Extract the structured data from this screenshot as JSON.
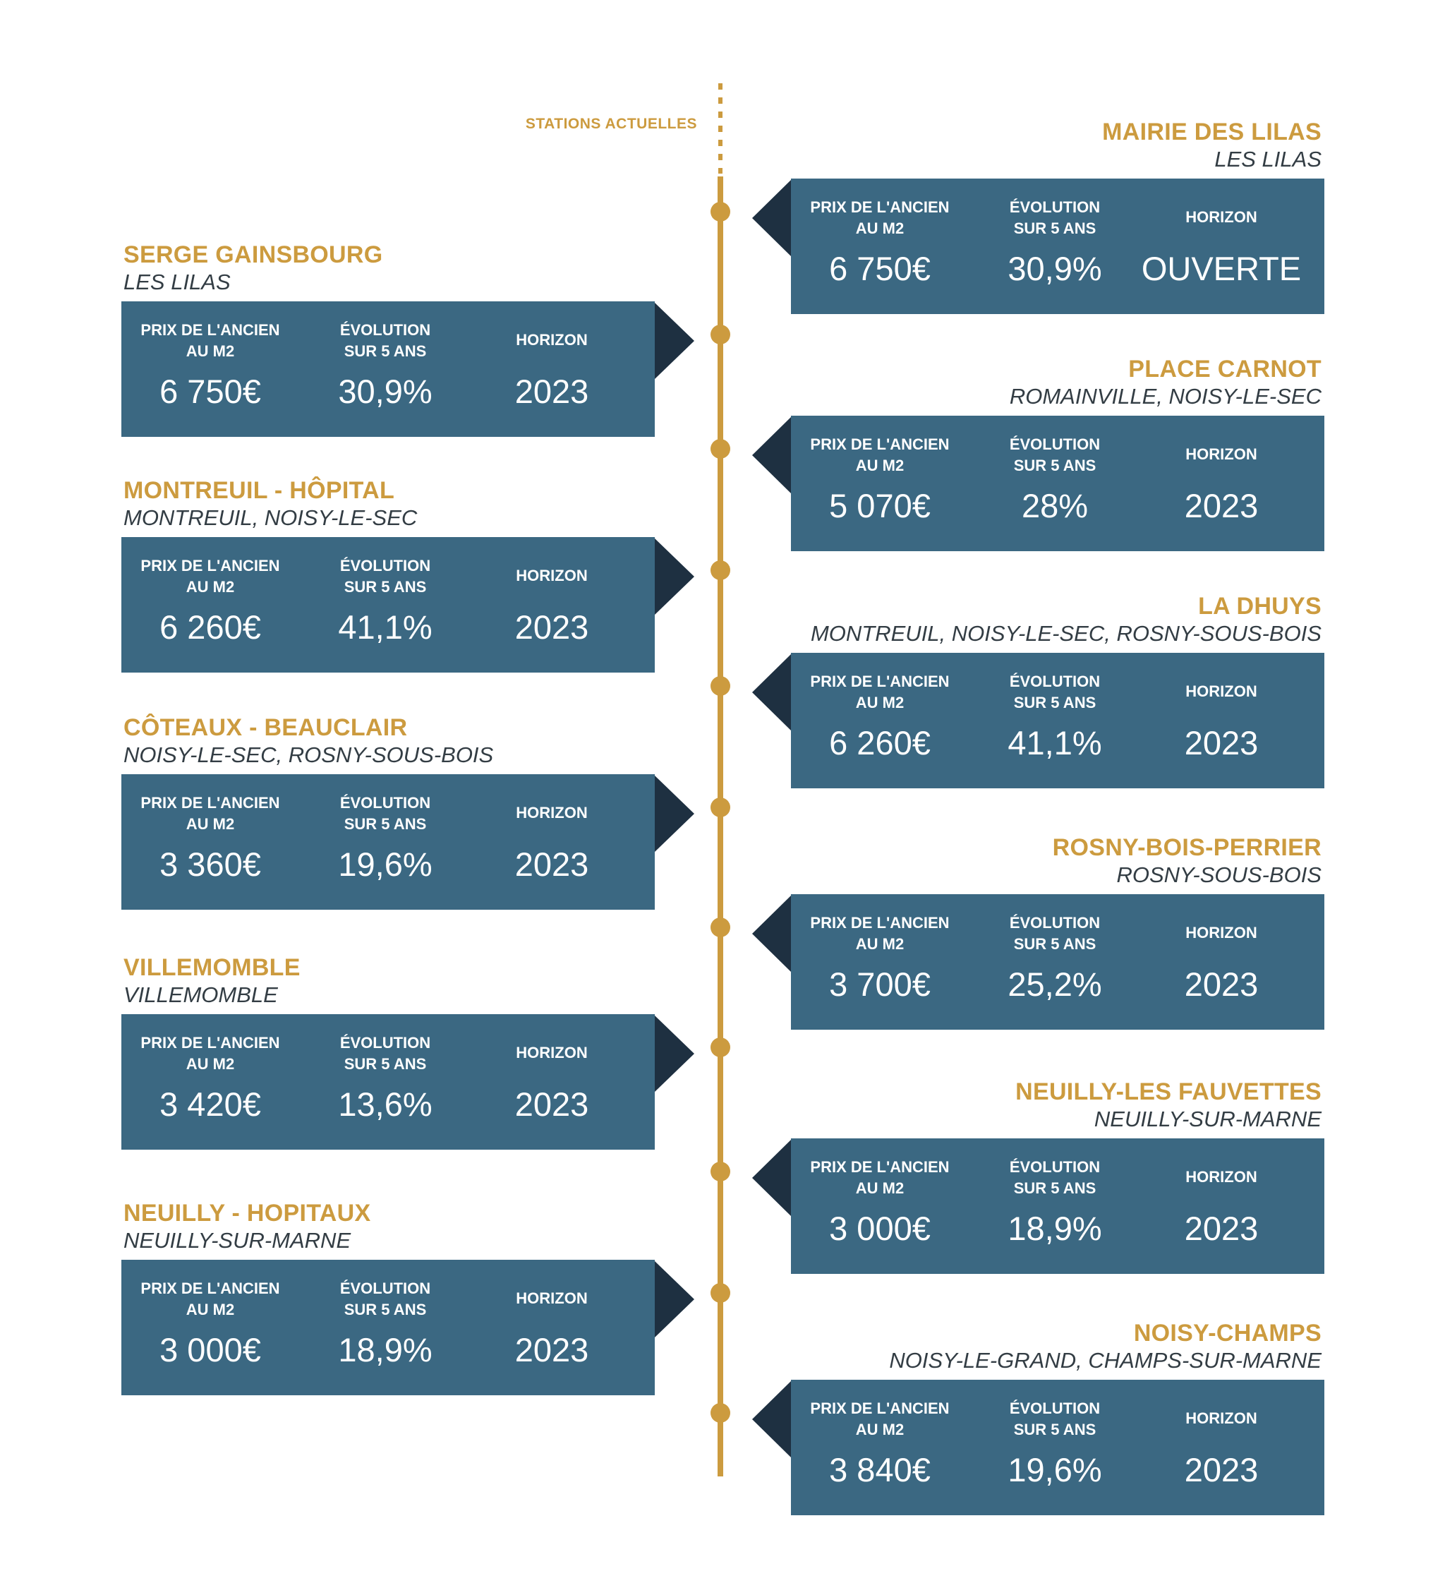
{
  "header_label": "STATIONS ACTUELLES",
  "colors": {
    "accent": "#cc9b3f",
    "box": "#3b6882",
    "arrow": "#1e3041",
    "subtitle": "#333d44"
  },
  "stations": [
    {
      "name": "MAIRIE DES LILAS",
      "city": "LES LILAS",
      "side": "right",
      "price_label_1": "PRIX DE L'ANCIEN",
      "price_label_2": "AU M2",
      "price": "6 750€",
      "evol_label_1": "ÉVOLUTION",
      "evol_label_2": "SUR 5 ANS",
      "evolution": "30,9%",
      "horizon_label": "HORIZON",
      "horizon": "OUVERTE"
    },
    {
      "name": "SERGE GAINSBOURG",
      "city": "LES LILAS",
      "side": "left",
      "price_label_1": "PRIX DE L'ANCIEN",
      "price_label_2": "AU M2",
      "price": "6 750€",
      "evol_label_1": "ÉVOLUTION",
      "evol_label_2": "SUR 5 ANS",
      "evolution": "30,9%",
      "horizon_label": "HORIZON",
      "horizon": "2023"
    },
    {
      "name": "PLACE CARNOT",
      "city": "ROMAINVILLE, NOISY-LE-SEC",
      "side": "right",
      "price_label_1": "PRIX DE L'ANCIEN",
      "price_label_2": "AU M2",
      "price": "5 070€",
      "evol_label_1": "ÉVOLUTION",
      "evol_label_2": "SUR 5 ANS",
      "evolution": "28%",
      "horizon_label": "HORIZON",
      "horizon": "2023"
    },
    {
      "name": "MONTREUIL - HÔPITAL",
      "city": "MONTREUIL, NOISY-LE-SEC",
      "side": "left",
      "price_label_1": "PRIX DE L'ANCIEN",
      "price_label_2": "AU M2",
      "price": "6 260€",
      "evol_label_1": "ÉVOLUTION",
      "evol_label_2": "SUR 5 ANS",
      "evolution": "41,1%",
      "horizon_label": "HORIZON",
      "horizon": "2023"
    },
    {
      "name": "LA DHUYS",
      "city": "MONTREUIL, NOISY-LE-SEC, ROSNY-SOUS-BOIS",
      "side": "right",
      "price_label_1": "PRIX DE L'ANCIEN",
      "price_label_2": "AU M2",
      "price": "6 260€",
      "evol_label_1": "ÉVOLUTION",
      "evol_label_2": "SUR 5 ANS",
      "evolution": "41,1%",
      "horizon_label": "HORIZON",
      "horizon": "2023"
    },
    {
      "name": "CÔTEAUX - BEAUCLAIR",
      "city": "NOISY-LE-SEC, ROSNY-SOUS-BOIS",
      "side": "left",
      "price_label_1": "PRIX DE L'ANCIEN",
      "price_label_2": "AU M2",
      "price": "3 360€",
      "evol_label_1": "ÉVOLUTION",
      "evol_label_2": "SUR 5 ANS",
      "evolution": "19,6%",
      "horizon_label": "HORIZON",
      "horizon": "2023"
    },
    {
      "name": "ROSNY-BOIS-PERRIER",
      "city": "ROSNY-SOUS-BOIS",
      "side": "right",
      "price_label_1": "PRIX DE L'ANCIEN",
      "price_label_2": "AU M2",
      "price": "3 700€",
      "evol_label_1": "ÉVOLUTION",
      "evol_label_2": "SUR 5 ANS",
      "evolution": "25,2%",
      "horizon_label": "HORIZON",
      "horizon": "2023"
    },
    {
      "name": "VILLEMOMBLE",
      "city": "VILLEMOMBLE",
      "side": "left",
      "price_label_1": "PRIX DE L'ANCIEN",
      "price_label_2": "AU M2",
      "price": "3 420€",
      "evol_label_1": "ÉVOLUTION",
      "evol_label_2": "SUR 5 ANS",
      "evolution": "13,6%",
      "horizon_label": "HORIZON",
      "horizon": "2023"
    },
    {
      "name": "NEUILLY-LES FAUVETTES",
      "city": "NEUILLY-SUR-MARNE",
      "side": "right",
      "price_label_1": "PRIX DE L'ANCIEN",
      "price_label_2": "AU M2",
      "price": "3 000€",
      "evol_label_1": "ÉVOLUTION",
      "evol_label_2": "SUR 5 ANS",
      "evolution": "18,9%",
      "horizon_label": "HORIZON",
      "horizon": "2023"
    },
    {
      "name": "NEUILLY - HOPITAUX",
      "city": "NEUILLY-SUR-MARNE",
      "side": "left",
      "price_label_1": "PRIX DE L'ANCIEN",
      "price_label_2": "AU M2",
      "price": "3 000€",
      "evol_label_1": "ÉVOLUTION",
      "evol_label_2": "SUR 5 ANS",
      "evolution": "18,9%",
      "horizon_label": "HORIZON",
      "horizon": "2023"
    },
    {
      "name": "NOISY-CHAMPS",
      "city": "NOISY-LE-GRAND, CHAMPS-SUR-MARNE",
      "side": "right",
      "price_label_1": "PRIX DE L'ANCIEN",
      "price_label_2": "AU M2",
      "price": "3 840€",
      "evol_label_1": "ÉVOLUTION",
      "evol_label_2": "SUR 5 ANS",
      "evolution": "19,6%",
      "horizon_label": "HORIZON",
      "horizon": "2023"
    }
  ]
}
